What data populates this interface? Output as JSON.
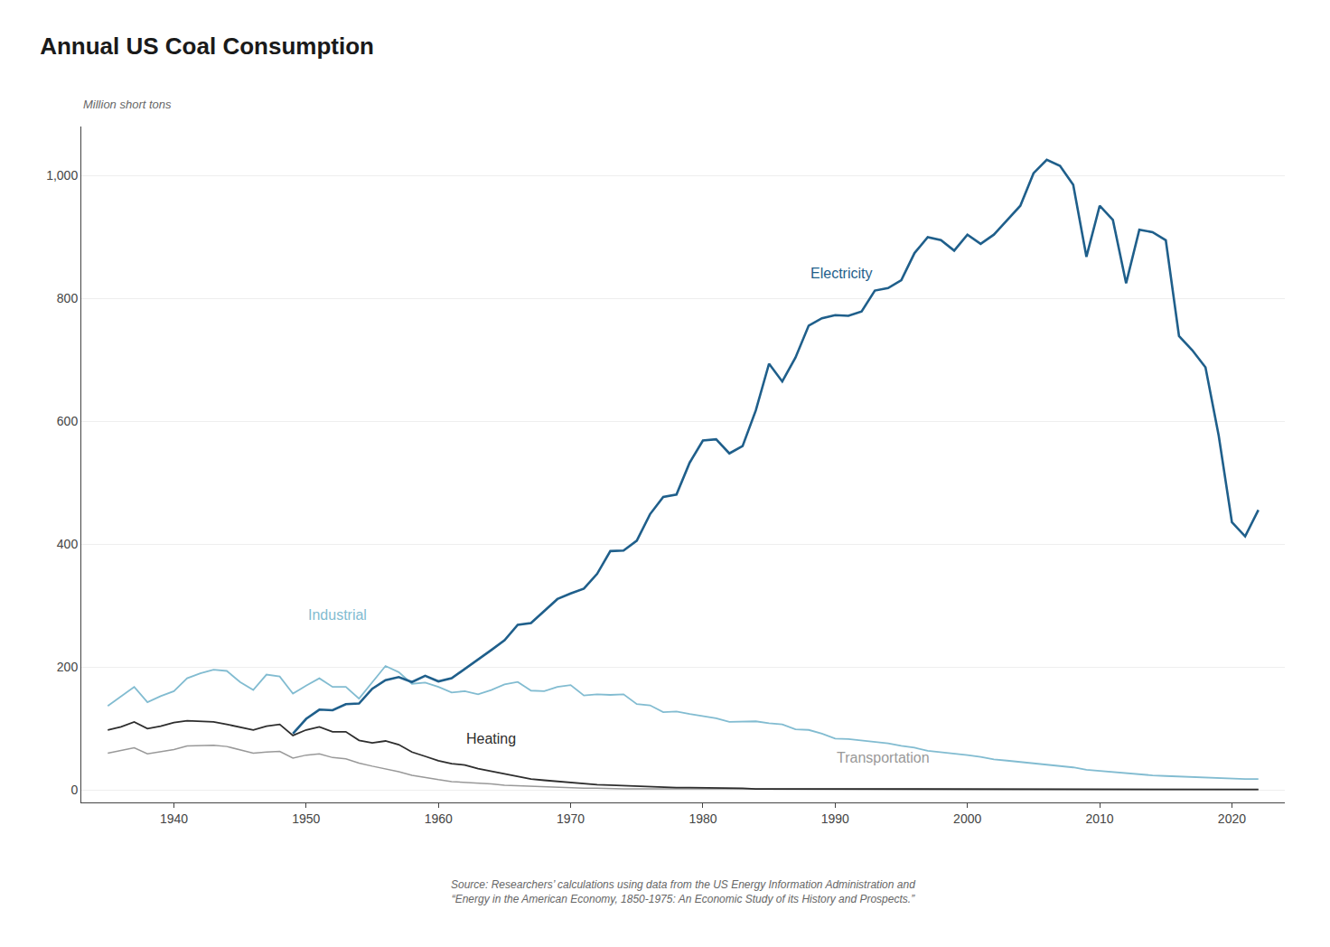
{
  "chart_data": {
    "type": "line",
    "title": "Annual US Coal Consumption",
    "ylabel": "Million short tons",
    "source": "Source: Researchers’ calculations using data from the US Energy Information Administration and\n“Energy in the American Economy, 1850-1975: An Economic Study of its History and Prospects.”",
    "xlim": [
      1933,
      2024
    ],
    "ylim": [
      -20,
      1080
    ],
    "xticks": [
      1940,
      1950,
      1960,
      1970,
      1980,
      1990,
      2000,
      2010,
      2020
    ],
    "yticks": [
      0,
      200,
      400,
      600,
      800,
      {
        "value": 1000,
        "label": "1,000"
      }
    ],
    "grid": true,
    "series": [
      {
        "name": "Electricity",
        "color": "#1f5f8b",
        "label_x": 1988,
        "label_y": 825,
        "x": [
          1949,
          1950,
          1951,
          1952,
          1953,
          1954,
          1955,
          1956,
          1957,
          1958,
          1959,
          1960,
          1961,
          1962,
          1963,
          1964,
          1965,
          1966,
          1967,
          1968,
          1969,
          1970,
          1971,
          1972,
          1973,
          1974,
          1975,
          1976,
          1977,
          1978,
          1979,
          1980,
          1981,
          1982,
          1983,
          1984,
          1985,
          1986,
          1987,
          1988,
          1989,
          1990,
          1991,
          1992,
          1993,
          1994,
          1995,
          1996,
          1997,
          1998,
          1999,
          2000,
          2001,
          2002,
          2003,
          2004,
          2005,
          2006,
          2007,
          2008,
          2009,
          2010,
          2011,
          2012,
          2013,
          2014,
          2015,
          2016,
          2017,
          2018,
          2019,
          2020,
          2021,
          2022
        ],
        "values": [
          92,
          116,
          131,
          130,
          140,
          141,
          165,
          179,
          184,
          176,
          186,
          177,
          182,
          197,
          213,
          228,
          244,
          269,
          272,
          292,
          311,
          320,
          328,
          352,
          389,
          390,
          406,
          449,
          477,
          481,
          533,
          569,
          571,
          548,
          560,
          618,
          694,
          665,
          704,
          756,
          768,
          773,
          772,
          779,
          813,
          817,
          830,
          874,
          900,
          895,
          878,
          904,
          889,
          904,
          927,
          951,
          1004,
          1026,
          1016,
          985,
          868,
          951,
          928,
          825,
          912,
          908,
          895,
          739,
          716,
          688,
          577,
          436,
          413,
          456
        ]
      },
      {
        "name": "Industrial",
        "color": "#82bcd1",
        "label_x": 1950,
        "label_y": 270,
        "x": [
          1935,
          1936,
          1937,
          1938,
          1939,
          1940,
          1941,
          1942,
          1943,
          1944,
          1945,
          1946,
          1947,
          1948,
          1949,
          1950,
          1951,
          1952,
          1953,
          1954,
          1955,
          1956,
          1957,
          1958,
          1959,
          1960,
          1961,
          1962,
          1963,
          1964,
          1965,
          1966,
          1967,
          1968,
          1969,
          1970,
          1971,
          1972,
          1973,
          1974,
          1975,
          1976,
          1977,
          1978,
          1979,
          1980,
          1981,
          1982,
          1983,
          1984,
          1985,
          1986,
          1987,
          1988,
          1989,
          1990,
          1991,
          1992,
          1993,
          1994,
          1995,
          1996,
          1997,
          1998,
          1999,
          2000,
          2001,
          2002,
          2003,
          2004,
          2005,
          2006,
          2007,
          2008,
          2009,
          2010,
          2011,
          2012,
          2013,
          2014,
          2015,
          2016,
          2017,
          2018,
          2019,
          2020,
          2021,
          2022
        ],
        "values": [
          137,
          153,
          168,
          143,
          153,
          161,
          182,
          190,
          196,
          194,
          176,
          163,
          188,
          185,
          157,
          170,
          182,
          168,
          168,
          149,
          175,
          202,
          192,
          173,
          175,
          168,
          159,
          161,
          156,
          163,
          172,
          176,
          162,
          161,
          168,
          171,
          154,
          156,
          155,
          156,
          140,
          138,
          127,
          128,
          124,
          121,
          117,
          111,
          112,
          112,
          109,
          107,
          99,
          98,
          92,
          84,
          83,
          81,
          79,
          76,
          72,
          69,
          64,
          62,
          60,
          57,
          54,
          50,
          48,
          46,
          44,
          42,
          40,
          37,
          33,
          31,
          29,
          27,
          25,
          24,
          23,
          22,
          21,
          21,
          20,
          19,
          18,
          18
        ]
      },
      {
        "name": "Heating",
        "color": "#2e2e2e",
        "label_x": 1962,
        "label_y": 68,
        "x": [
          1935,
          1936,
          1937,
          1938,
          1939,
          1940,
          1941,
          1942,
          1943,
          1944,
          1945,
          1946,
          1947,
          1948,
          1949,
          1950,
          1951,
          1952,
          1953,
          1954,
          1955,
          1956,
          1957,
          1958,
          1959,
          1960,
          1961,
          1962,
          1963,
          1964,
          1965,
          1966,
          1967,
          1968,
          1969,
          1970,
          1971,
          1972,
          1973,
          1974,
          1975,
          1976,
          1977,
          1978,
          1979,
          1980,
          1981,
          1982,
          1983,
          1984,
          1985,
          1986,
          1987,
          1988,
          1989,
          1990,
          1991,
          1992,
          1993,
          1994,
          1995,
          1996,
          1997,
          1998,
          1999,
          2000,
          2001,
          2002,
          2003,
          2004,
          2005,
          2006,
          2007,
          2008,
          2009,
          2010,
          2011,
          2012,
          2013,
          2014,
          2015,
          2016,
          2017,
          2018,
          2019,
          2020,
          2021,
          2022
        ],
        "values": [
          98,
          103,
          111,
          100,
          104,
          110,
          113,
          112,
          111,
          107,
          103,
          98,
          104,
          107,
          89,
          98,
          103,
          95,
          95,
          81,
          77,
          80,
          74,
          62,
          55,
          48,
          43,
          41,
          35,
          31,
          27,
          22,
          18,
          16,
          14,
          12,
          10,
          9,
          8,
          7,
          6,
          5,
          5,
          4,
          4,
          4,
          3,
          3,
          3,
          2,
          2,
          2,
          2,
          2,
          2,
          2,
          2,
          1,
          1,
          1,
          1,
          1,
          1,
          1,
          1,
          1,
          1,
          1,
          1,
          1,
          1,
          1,
          1,
          1,
          1,
          1,
          1,
          1,
          1,
          1,
          1,
          1,
          1,
          1,
          1,
          1,
          1,
          1
        ]
      },
      {
        "name": "Transportation",
        "color": "#999999",
        "label_x": 1990,
        "label_y": 38,
        "x": [
          1935,
          1936,
          1937,
          1938,
          1939,
          1940,
          1941,
          1942,
          1943,
          1944,
          1945,
          1946,
          1947,
          1948,
          1949,
          1950,
          1951,
          1952,
          1953,
          1954,
          1955,
          1956,
          1957,
          1958,
          1959,
          1960,
          1961,
          1962,
          1963,
          1964,
          1965,
          1966,
          1967,
          1968,
          1969,
          1970,
          1971,
          1972,
          1973,
          1974,
          1975,
          1976,
          1977,
          1978,
          1979,
          1980,
          1981,
          1982,
          1983,
          1984,
          1985,
          1986,
          1987,
          1988,
          1989,
          1990,
          1991,
          1992,
          1993,
          1994,
          1995,
          1996,
          1997,
          1998,
          1999,
          2000,
          2001,
          2002,
          2003,
          2004,
          2005,
          2006,
          2007,
          2008,
          2009,
          2010,
          2011,
          2012,
          2013,
          2014,
          2015,
          2016,
          2017,
          2018,
          2019,
          2020,
          2021,
          2022
        ],
        "values": [
          60,
          64,
          69,
          59,
          63,
          66,
          72,
          73,
          73,
          71,
          66,
          60,
          62,
          63,
          52,
          57,
          59,
          53,
          51,
          44,
          39,
          35,
          30,
          24,
          20,
          17,
          14,
          13,
          11,
          10,
          8,
          7,
          6,
          5,
          4,
          3,
          3,
          3,
          2,
          2,
          2,
          2,
          2,
          2,
          2,
          2,
          2,
          1,
          1,
          1,
          1,
          1,
          1,
          1,
          1,
          1,
          1,
          1,
          1,
          1,
          1,
          1,
          1,
          1,
          1,
          1,
          1,
          1,
          1,
          1,
          1,
          1,
          1,
          1,
          1,
          1,
          1,
          1,
          1,
          1,
          1,
          1,
          1,
          1,
          1,
          1,
          1,
          1
        ]
      }
    ]
  }
}
